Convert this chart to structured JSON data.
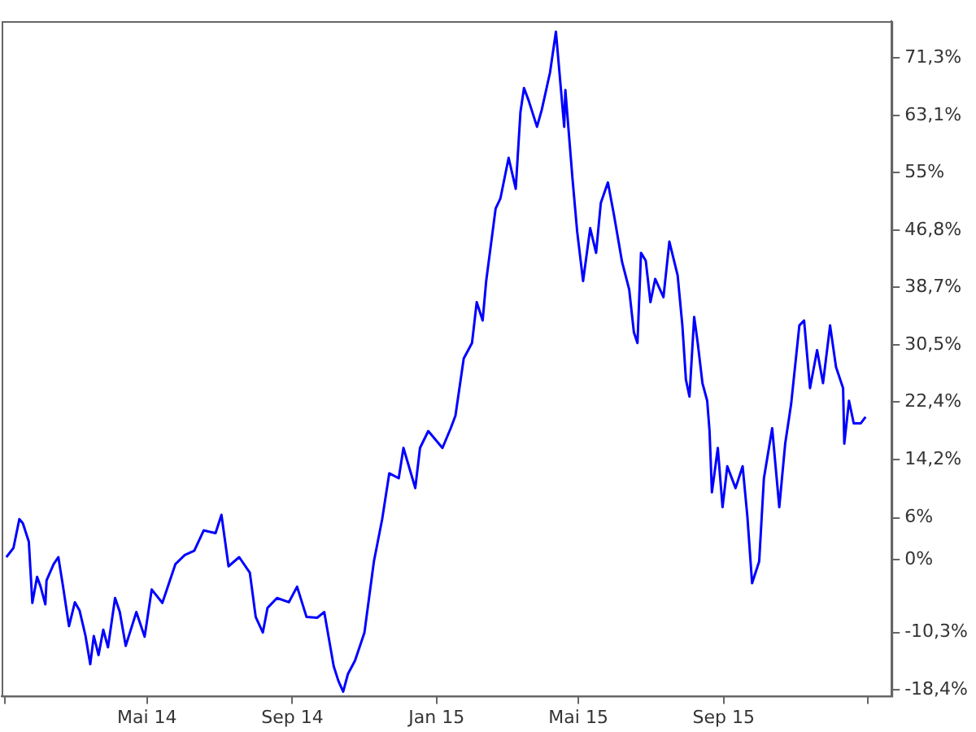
{
  "chart_data": {
    "type": "line",
    "legend": false,
    "grid": false,
    "marker": "none",
    "line_style": "solid",
    "xlim": [
      "2013-12-29",
      "2016-01-21"
    ],
    "xticks": [
      {
        "value": "2014-01-01",
        "label": null
      },
      {
        "value": "2014-05-01",
        "label": "Mai 14"
      },
      {
        "value": "2014-09-01",
        "label": "Sep 14"
      },
      {
        "value": "2015-01-01",
        "label": "Jan 15"
      },
      {
        "value": "2015-05-01",
        "label": "Mai 15"
      },
      {
        "value": "2015-09-01",
        "label": "Sep 15"
      },
      {
        "value": "2016-01-01",
        "label": null
      }
    ],
    "ylim": [
      -19.3,
      76.5
    ],
    "yticks": [
      {
        "value": -18.4,
        "label": "-18,4%"
      },
      {
        "value": -10.3,
        "label": "-10,3%"
      },
      {
        "value": 0,
        "label": "0%"
      },
      {
        "value": 6,
        "label": "6%"
      },
      {
        "value": 14.2,
        "label": "14,2%"
      },
      {
        "value": 22.4,
        "label": "22,4%"
      },
      {
        "value": 30.5,
        "label": "30,5%"
      },
      {
        "value": 38.7,
        "label": "38,7%"
      },
      {
        "value": 46.8,
        "label": "46,8%"
      },
      {
        "value": 55,
        "label": "55%"
      },
      {
        "value": 63.1,
        "label": "63,1%"
      },
      {
        "value": 71.3,
        "label": "71,3%"
      }
    ],
    "x": [
      "2014-01-02",
      "2014-01-08",
      "2014-01-13",
      "2014-01-16",
      "2014-01-21",
      "2014-01-24",
      "2014-01-28",
      "2014-01-31",
      "2014-02-04",
      "2014-02-05",
      "2014-02-11",
      "2014-02-15",
      "2014-02-19",
      "2014-02-24",
      "2014-03-01",
      "2014-03-05",
      "2014-03-10",
      "2014-03-14",
      "2014-03-17",
      "2014-03-21",
      "2014-03-25",
      "2014-03-29",
      "2014-04-04",
      "2014-04-08",
      "2014-04-13",
      "2014-04-22",
      "2014-04-29",
      "2014-05-05",
      "2014-05-14",
      "2014-05-25",
      "2014-06-02",
      "2014-06-10",
      "2014-06-18",
      "2014-06-28",
      "2014-07-03",
      "2014-07-09",
      "2014-07-18",
      "2014-07-27",
      "2014-08-01",
      "2014-08-07",
      "2014-08-11",
      "2014-08-19",
      "2014-08-29",
      "2014-09-05",
      "2014-09-13",
      "2014-09-22",
      "2014-09-28",
      "2014-10-06",
      "2014-10-10",
      "2014-10-14",
      "2014-10-18",
      "2014-10-24",
      "2014-11-01",
      "2014-11-09",
      "2014-11-16",
      "2014-11-22",
      "2014-11-30",
      "2014-12-04",
      "2014-12-14",
      "2014-12-18",
      "2014-12-25",
      "2015-01-06",
      "2015-01-13",
      "2015-01-17",
      "2015-01-24",
      "2015-01-31",
      "2015-02-04",
      "2015-02-09",
      "2015-02-12",
      "2015-02-20",
      "2015-02-24",
      "2015-03-03",
      "2015-03-09",
      "2015-03-13",
      "2015-03-16",
      "2015-03-20",
      "2015-03-27",
      "2015-03-31",
      "2015-04-07",
      "2015-04-12",
      "2015-04-19",
      "2015-04-20",
      "2015-04-26",
      "2015-04-30",
      "2015-05-05",
      "2015-05-11",
      "2015-05-16",
      "2015-05-20",
      "2015-05-26",
      "2015-05-31",
      "2015-06-07",
      "2015-06-13",
      "2015-06-17",
      "2015-06-20",
      "2015-06-23",
      "2015-06-27",
      "2015-07-01",
      "2015-07-05",
      "2015-07-12",
      "2015-07-17",
      "2015-07-24",
      "2015-07-28",
      "2015-07-31",
      "2015-08-03",
      "2015-08-07",
      "2015-08-10",
      "2015-08-14",
      "2015-08-18",
      "2015-08-20",
      "2015-08-22",
      "2015-08-27",
      "2015-08-31",
      "2015-09-04",
      "2015-09-11",
      "2015-09-17",
      "2015-09-21",
      "2015-09-25",
      "2015-10-01",
      "2015-10-05",
      "2015-10-12",
      "2015-10-18",
      "2015-10-23",
      "2015-10-28",
      "2015-11-04",
      "2015-11-08",
      "2015-11-13",
      "2015-11-19",
      "2015-11-24",
      "2015-11-30",
      "2015-12-05",
      "2015-12-11",
      "2015-12-12",
      "2015-12-16",
      "2015-12-20",
      "2015-12-26",
      "2015-12-30"
    ],
    "series": [
      {
        "color": "#0000ff",
        "values": [
          0.4,
          1.7,
          5.8,
          5.2,
          2.6,
          -6.1,
          -2.4,
          -3.8,
          -6.3,
          -2.9,
          -0.6,
          0.4,
          -3.8,
          -9.4,
          -6.0,
          -7.2,
          -10.8,
          -14.8,
          -10.8,
          -13.5,
          -9.9,
          -12.4,
          -5.4,
          -7.4,
          -12.2,
          -7.4,
          -10.9,
          -4.2,
          -6.1,
          -0.6,
          0.7,
          1.3,
          4.2,
          3.8,
          6.4,
          -0.9,
          0.4,
          -1.8,
          -8.1,
          -10.3,
          -6.8,
          -5.4,
          -6.0,
          -3.8,
          -8.1,
          -8.2,
          -7.4,
          -15.1,
          -17.2,
          -18.7,
          -16.2,
          -14.3,
          -10.3,
          -0.2,
          5.8,
          12.3,
          11.6,
          15.9,
          10.2,
          15.9,
          18.3,
          15.9,
          18.7,
          20.5,
          28.6,
          30.8,
          36.6,
          34.0,
          39.6,
          49.9,
          51.3,
          57.1,
          52.7,
          63.6,
          67.0,
          65.2,
          61.5,
          63.9,
          69.2,
          75.0,
          61.5,
          66.7,
          54.2,
          46.6,
          39.6,
          47.1,
          43.6,
          50.7,
          53.6,
          49.1,
          42.3,
          38.4,
          32.3,
          30.8,
          43.6,
          42.5,
          36.6,
          39.9,
          37.3,
          45.2,
          40.4,
          33.3,
          25.6,
          23.2,
          34.5,
          30.8,
          25.1,
          22.6,
          18.3,
          9.6,
          15.9,
          7.5,
          13.3,
          10.2,
          13.3,
          6.2,
          -3.3,
          -0.2,
          11.6,
          18.7,
          7.5,
          16.5,
          22.1,
          33.3,
          34.0,
          24.4,
          29.8,
          25.1,
          33.3,
          27.4,
          24.4,
          16.5,
          22.6,
          19.4,
          19.4,
          20.3
        ]
      }
    ]
  }
}
